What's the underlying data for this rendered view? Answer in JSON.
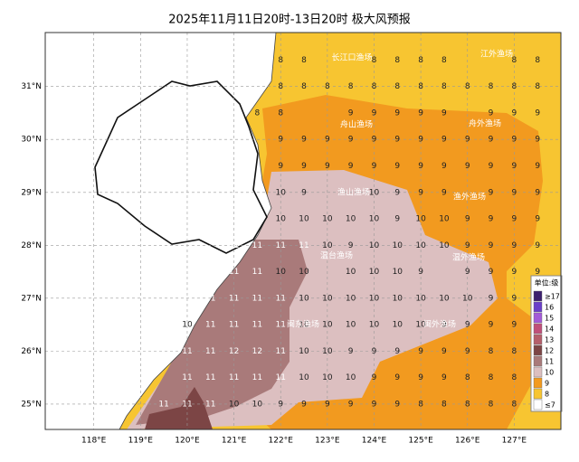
{
  "title": "2025年11月11日20时-13日20时 极大风预报",
  "map": {
    "xlim": [
      116.96,
      128.0
    ],
    "ylim": [
      24.52,
      32.02
    ],
    "xticks": [
      {
        "value": 118,
        "label": "118°E"
      },
      {
        "value": 119,
        "label": "119°E"
      },
      {
        "value": 120,
        "label": "120°E"
      },
      {
        "value": 121,
        "label": "121°E"
      },
      {
        "value": 122,
        "label": "122°E"
      },
      {
        "value": 123,
        "label": "123°E"
      },
      {
        "value": 124,
        "label": "124°E"
      },
      {
        "value": 125,
        "label": "125°E"
      },
      {
        "value": 126,
        "label": "126°E"
      },
      {
        "value": 127,
        "label": "127°E"
      }
    ],
    "yticks": [
      {
        "value": 25,
        "label": "25°N"
      },
      {
        "value": 26,
        "label": "26°N"
      },
      {
        "value": 27,
        "label": "27°N"
      },
      {
        "value": 28,
        "label": "28°N"
      },
      {
        "value": 29,
        "label": "29°N"
      },
      {
        "value": 30,
        "label": "30°N"
      },
      {
        "value": 31,
        "label": "31°N"
      }
    ]
  },
  "fishing_grounds": [
    "长江口渔场",
    "江外渔场",
    "舟山渔场",
    "舟外渔场",
    "渔山渔场",
    "渔外渔场",
    "温台渔场",
    "温外渔场",
    "闽东渔场",
    "闽外渔场"
  ],
  "grid": [
    {
      "lat": 31.5,
      "lon_start": 122,
      "values": [
        8,
        8,
        null,
        null,
        8,
        8,
        8,
        8,
        null,
        null,
        8,
        8
      ]
    },
    {
      "lat": 31.0,
      "lon_start": 122,
      "values": [
        8,
        8,
        8,
        8,
        8,
        8,
        8,
        8,
        8,
        8,
        8,
        8
      ]
    },
    {
      "lat": 30.5,
      "lon_start": 121.5,
      "values": [
        8,
        8,
        null,
        null,
        9,
        9,
        9,
        9,
        9,
        null,
        9,
        9,
        9
      ]
    },
    {
      "lat": 30.0,
      "lon_start": 122,
      "values": [
        9,
        9,
        9,
        9,
        9,
        9,
        9,
        9,
        9,
        9,
        9,
        9
      ]
    },
    {
      "lat": 29.5,
      "lon_start": 122,
      "values": [
        9,
        9,
        9,
        9,
        9,
        9,
        9,
        9,
        9,
        9,
        9,
        9
      ]
    },
    {
      "lat": 29.0,
      "lon_start": 122,
      "values": [
        10,
        9,
        null,
        null,
        10,
        9,
        9,
        9,
        null,
        9,
        9,
        9
      ]
    },
    {
      "lat": 28.5,
      "lon_start": 122,
      "values": [
        10,
        10,
        10,
        10,
        10,
        9,
        10,
        10,
        9,
        9,
        9,
        9
      ]
    },
    {
      "lat": 28.0,
      "lon_start": 121,
      "values": [
        11,
        11,
        11,
        11,
        10,
        9,
        10,
        10,
        10,
        10,
        9,
        9,
        9,
        9
      ]
    },
    {
      "lat": 27.5,
      "lon_start": 121,
      "values": [
        11,
        11,
        10,
        10,
        null,
        10,
        10,
        10,
        9,
        null,
        9,
        9,
        9,
        9
      ]
    },
    {
      "lat": 27.0,
      "lon_start": 120.5,
      "values": [
        11,
        11,
        11,
        11,
        10,
        10,
        10,
        10,
        10,
        10,
        10,
        10,
        9,
        9,
        9
      ]
    },
    {
      "lat": 26.5,
      "lon_start": 120,
      "values": [
        10,
        11,
        11,
        11,
        11,
        10,
        10,
        10,
        10,
        10,
        10,
        9,
        9,
        9,
        9,
        9
      ]
    },
    {
      "lat": 26.0,
      "lon_start": 120,
      "values": [
        11,
        11,
        12,
        12,
        11,
        10,
        10,
        9,
        9,
        9,
        9,
        9,
        9,
        8,
        8,
        8
      ]
    },
    {
      "lat": 25.5,
      "lon_start": 120,
      "values": [
        11,
        11,
        11,
        11,
        11,
        10,
        10,
        10,
        9,
        9,
        9,
        9,
        8,
        8,
        8,
        8
      ]
    },
    {
      "lat": 25.0,
      "lon_start": 119.5,
      "values": [
        11,
        11,
        11,
        10,
        10,
        9,
        9,
        9,
        9,
        9,
        9,
        8,
        8,
        8,
        8,
        8,
        8
      ]
    }
  ],
  "legend": {
    "title": "单位:级",
    "items": [
      {
        "label": "≥17",
        "color": "#3b1f6e"
      },
      {
        "label": "16",
        "color": "#6a3fc9"
      },
      {
        "label": "15",
        "color": "#a35bd8"
      },
      {
        "label": "14",
        "color": "#c0507a"
      },
      {
        "label": "13",
        "color": "#b55f6b"
      },
      {
        "label": "12",
        "color": "#7c4545"
      },
      {
        "label": "11",
        "color": "#a97a7a"
      },
      {
        "label": "10",
        "color": "#dcbfc0"
      },
      {
        "label": "9",
        "color": "#f29a1f"
      },
      {
        "label": "8",
        "color": "#f7c531"
      },
      {
        "label": "≤7",
        "color": "#ffffff"
      }
    ]
  }
}
